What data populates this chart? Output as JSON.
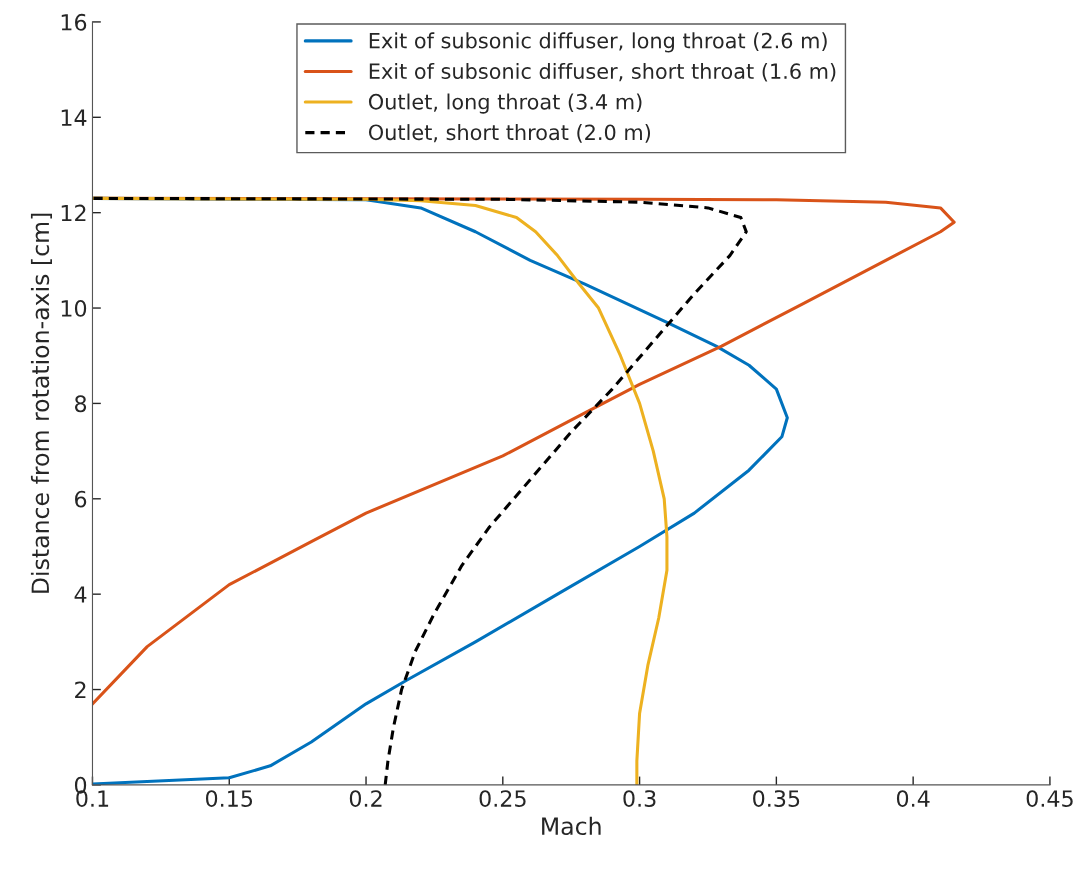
{
  "chart_data": {
    "type": "line",
    "xlabel": "Mach",
    "ylabel": "Distance from rotation-axis [cm]",
    "xlim": [
      0.1,
      0.45
    ],
    "xticks": [
      0.1,
      0.15,
      0.2,
      0.25,
      0.3,
      0.35,
      0.4,
      0.45
    ],
    "ylim": [
      0,
      16
    ],
    "yticks": [
      0,
      2,
      4,
      6,
      8,
      10,
      12,
      14,
      16
    ],
    "grid": false,
    "legend": "top",
    "marker": "none",
    "series": [
      {
        "name": "Exit of subsonic diffuser, long throat (2.6 m)",
        "color": "#0072bd",
        "line_style": "solid",
        "x": [
          0.1,
          0.15,
          0.165,
          0.18,
          0.2,
          0.215,
          0.24,
          0.27,
          0.3,
          0.32,
          0.34,
          0.352,
          0.354,
          0.35,
          0.34,
          0.328,
          0.31,
          0.28,
          0.26,
          0.24,
          0.22,
          0.2,
          0.1
        ],
        "values": [
          0.02,
          0.15,
          0.4,
          0.9,
          1.7,
          2.2,
          3.0,
          4.0,
          5.0,
          5.7,
          6.6,
          7.3,
          7.7,
          8.3,
          8.8,
          9.2,
          9.7,
          10.5,
          11.0,
          11.6,
          12.1,
          12.27,
          12.3
        ]
      },
      {
        "name": "Exit of subsonic diffuser, short throat (1.6 m)",
        "color": "#d95319",
        "line_style": "solid",
        "x": [
          0.1,
          0.12,
          0.15,
          0.18,
          0.2,
          0.25,
          0.28,
          0.3,
          0.33,
          0.36,
          0.39,
          0.41,
          0.415,
          0.41,
          0.39,
          0.35,
          0.3,
          0.1
        ],
        "values": [
          1.7,
          2.9,
          4.2,
          5.1,
          5.7,
          6.9,
          7.8,
          8.4,
          9.2,
          10.1,
          11.0,
          11.6,
          11.8,
          12.1,
          12.22,
          12.27,
          12.28,
          12.3
        ]
      },
      {
        "name": "Outlet, long throat (3.4 m)",
        "color": "#edb120",
        "line_style": "solid",
        "x": [
          0.299,
          0.299,
          0.3,
          0.303,
          0.307,
          0.31,
          0.31,
          0.309,
          0.305,
          0.3,
          0.293,
          0.285,
          0.278,
          0.27,
          0.262,
          0.255,
          0.24,
          0.22,
          0.2,
          0.1
        ],
        "values": [
          0,
          0.5,
          1.5,
          2.5,
          3.5,
          4.5,
          5.2,
          6.0,
          7.0,
          8.0,
          9.0,
          10.0,
          10.5,
          11.1,
          11.6,
          11.9,
          12.15,
          12.25,
          12.28,
          12.3
        ]
      },
      {
        "name": "Outlet, short throat (2.0 m)",
        "color": "#000000",
        "line_style": "dashed",
        "x": [
          0.207,
          0.208,
          0.21,
          0.213,
          0.218,
          0.225,
          0.235,
          0.245,
          0.26,
          0.275,
          0.29,
          0.305,
          0.32,
          0.333,
          0.339,
          0.337,
          0.325,
          0.3,
          0.25,
          0.1
        ],
        "values": [
          0,
          0.5,
          1.2,
          2.0,
          2.8,
          3.6,
          4.6,
          5.4,
          6.4,
          7.4,
          8.3,
          9.3,
          10.3,
          11.1,
          11.6,
          11.9,
          12.1,
          12.22,
          12.28,
          12.3
        ]
      }
    ]
  }
}
